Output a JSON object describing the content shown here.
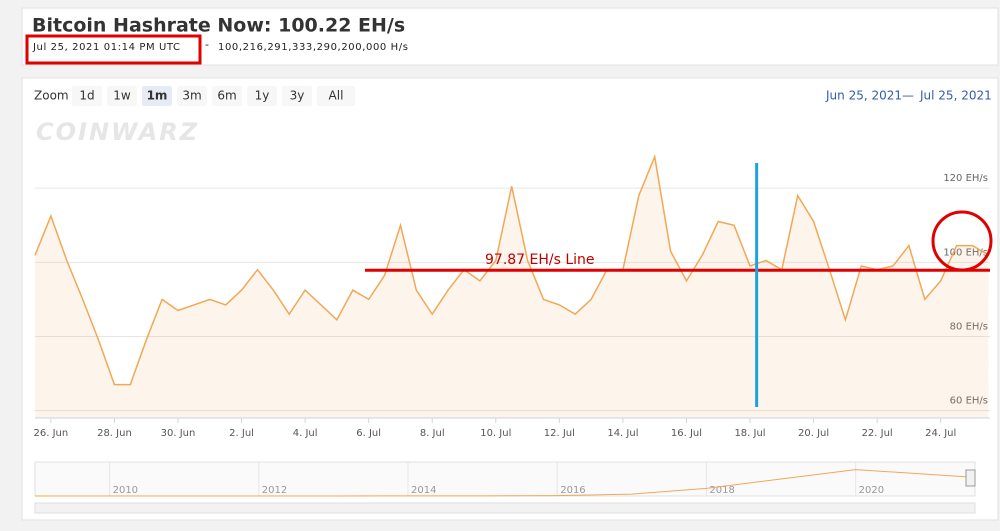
{
  "header": {
    "title": "Bitcoin Hashrate Now: 100.22 EH/s",
    "timestamp": "Jul 25, 2021 01:14 PM UTC",
    "separator": "-",
    "hashrate": "100,216,291,333,290,200,000 H/s"
  },
  "toolbar": {
    "zoom_label": "Zoom",
    "buttons": [
      "1d",
      "1w",
      "1m",
      "3m",
      "6m",
      "1y",
      "3y",
      "All"
    ],
    "selected": "1m",
    "range_from": "Jun 25, 2021",
    "range_sep": "—",
    "range_to": "Jul 25, 2021"
  },
  "watermark": "COINWARZ",
  "chart_data": {
    "type": "line",
    "x": [
      "2021-06-25T12:00",
      "2021-06-26T00:00",
      "2021-06-26T12:00",
      "2021-06-27T00:00",
      "2021-06-27T12:00",
      "2021-06-28T00:00",
      "2021-06-28T12:00",
      "2021-06-29T00:00",
      "2021-06-29T12:00",
      "2021-06-30T00:00",
      "2021-06-30T12:00",
      "2021-07-01T00:00",
      "2021-07-01T12:00",
      "2021-07-02T00:00",
      "2021-07-02T12:00",
      "2021-07-03T00:00",
      "2021-07-03T12:00",
      "2021-07-04T00:00",
      "2021-07-04T12:00",
      "2021-07-05T00:00",
      "2021-07-05T12:00",
      "2021-07-06T00:00",
      "2021-07-06T12:00",
      "2021-07-07T00:00",
      "2021-07-07T12:00",
      "2021-07-08T00:00",
      "2021-07-08T12:00",
      "2021-07-09T00:00",
      "2021-07-09T12:00",
      "2021-07-10T00:00",
      "2021-07-10T12:00",
      "2021-07-11T00:00",
      "2021-07-11T12:00",
      "2021-07-12T00:00",
      "2021-07-12T12:00",
      "2021-07-13T00:00",
      "2021-07-13T12:00",
      "2021-07-14T00:00",
      "2021-07-14T12:00",
      "2021-07-15T00:00",
      "2021-07-15T12:00",
      "2021-07-16T00:00",
      "2021-07-16T12:00",
      "2021-07-17T00:00",
      "2021-07-17T12:00",
      "2021-07-18T00:00",
      "2021-07-18T12:00",
      "2021-07-19T00:00",
      "2021-07-19T12:00",
      "2021-07-20T00:00",
      "2021-07-20T12:00",
      "2021-07-21T00:00",
      "2021-07-21T12:00",
      "2021-07-22T00:00",
      "2021-07-22T12:00",
      "2021-07-23T00:00",
      "2021-07-23T12:00",
      "2021-07-24T00:00",
      "2021-07-24T12:00",
      "2021-07-25T00:00",
      "2021-07-25T12:00"
    ],
    "series": [
      {
        "color": "#f0a857",
        "values": [
          101.9,
          112.5,
          100.5,
          90,
          79,
          67,
          67,
          79,
          90,
          87,
          88.5,
          90,
          88.5,
          92.5,
          98,
          92.5,
          86,
          92.5,
          88.5,
          84.5,
          92.5,
          90,
          96.5,
          110,
          92.5,
          86,
          92.5,
          98,
          95,
          100.5,
          120.5,
          100.5,
          90,
          88.5,
          86,
          90,
          98,
          98,
          118,
          128.5,
          103,
          95,
          102,
          111,
          110,
          99,
          100.5,
          98,
          118,
          111,
          98,
          84.5,
          99,
          98,
          99,
          104.5,
          90,
          95,
          104.5,
          104.5,
          102
        ]
      }
    ],
    "xlim": [
      "2021-06-25T12:00",
      "2021-07-25T13:14"
    ],
    "xticks": [
      {
        "value": "2021-06-26T00:00",
        "label": "26. Jun"
      },
      {
        "value": "2021-06-28T00:00",
        "label": "28. Jun"
      },
      {
        "value": "2021-06-30T00:00",
        "label": "30. Jun"
      },
      {
        "value": "2021-07-02T00:00",
        "label": "2. Jul"
      },
      {
        "value": "2021-07-04T00:00",
        "label": "4. Jul"
      },
      {
        "value": "2021-07-06T00:00",
        "label": "6. Jul"
      },
      {
        "value": "2021-07-08T00:00",
        "label": "8. Jul"
      },
      {
        "value": "2021-07-10T00:00",
        "label": "10. Jul"
      },
      {
        "value": "2021-07-12T00:00",
        "label": "12. Jul"
      },
      {
        "value": "2021-07-14T00:00",
        "label": "14. Jul"
      },
      {
        "value": "2021-07-16T00:00",
        "label": "16. Jul"
      },
      {
        "value": "2021-07-18T00:00",
        "label": "18. Jul"
      },
      {
        "value": "2021-07-20T00:00",
        "label": "20. Jul"
      },
      {
        "value": "2021-07-22T00:00",
        "label": "22. Jul"
      },
      {
        "value": "2021-07-24T00:00",
        "label": "24. Jul"
      }
    ],
    "ylim": [
      58,
      133
    ],
    "yticks": [
      {
        "value": 60,
        "label": "60 EH/s"
      },
      {
        "value": 80,
        "label": "80 EH/s"
      },
      {
        "value": 100,
        "label": "100 EH/s"
      },
      {
        "value": 120,
        "label": "120 EH/s"
      }
    ],
    "grid": true,
    "annotations": {
      "hline": {
        "value": 97.87,
        "label": "97.87 EH/s Line",
        "color": "#e00000"
      },
      "vline": {
        "x": "2021-07-18T05:00",
        "color": "#1aa3e0"
      }
    },
    "navigator": {
      "x": [
        2009,
        2010,
        2011,
        2012,
        2013,
        2014,
        2015,
        2016,
        2017,
        2018,
        2019,
        2020,
        2021.55
      ],
      "values": [
        0,
        0,
        0,
        0,
        0.01,
        0.3,
        0.5,
        2,
        10,
        40,
        90,
        140,
        100
      ],
      "xlim": [
        2009,
        2021.6
      ],
      "ylim": [
        0,
        180
      ],
      "xticks": [
        2010,
        2012,
        2014,
        2016,
        2018,
        2020
      ]
    }
  }
}
